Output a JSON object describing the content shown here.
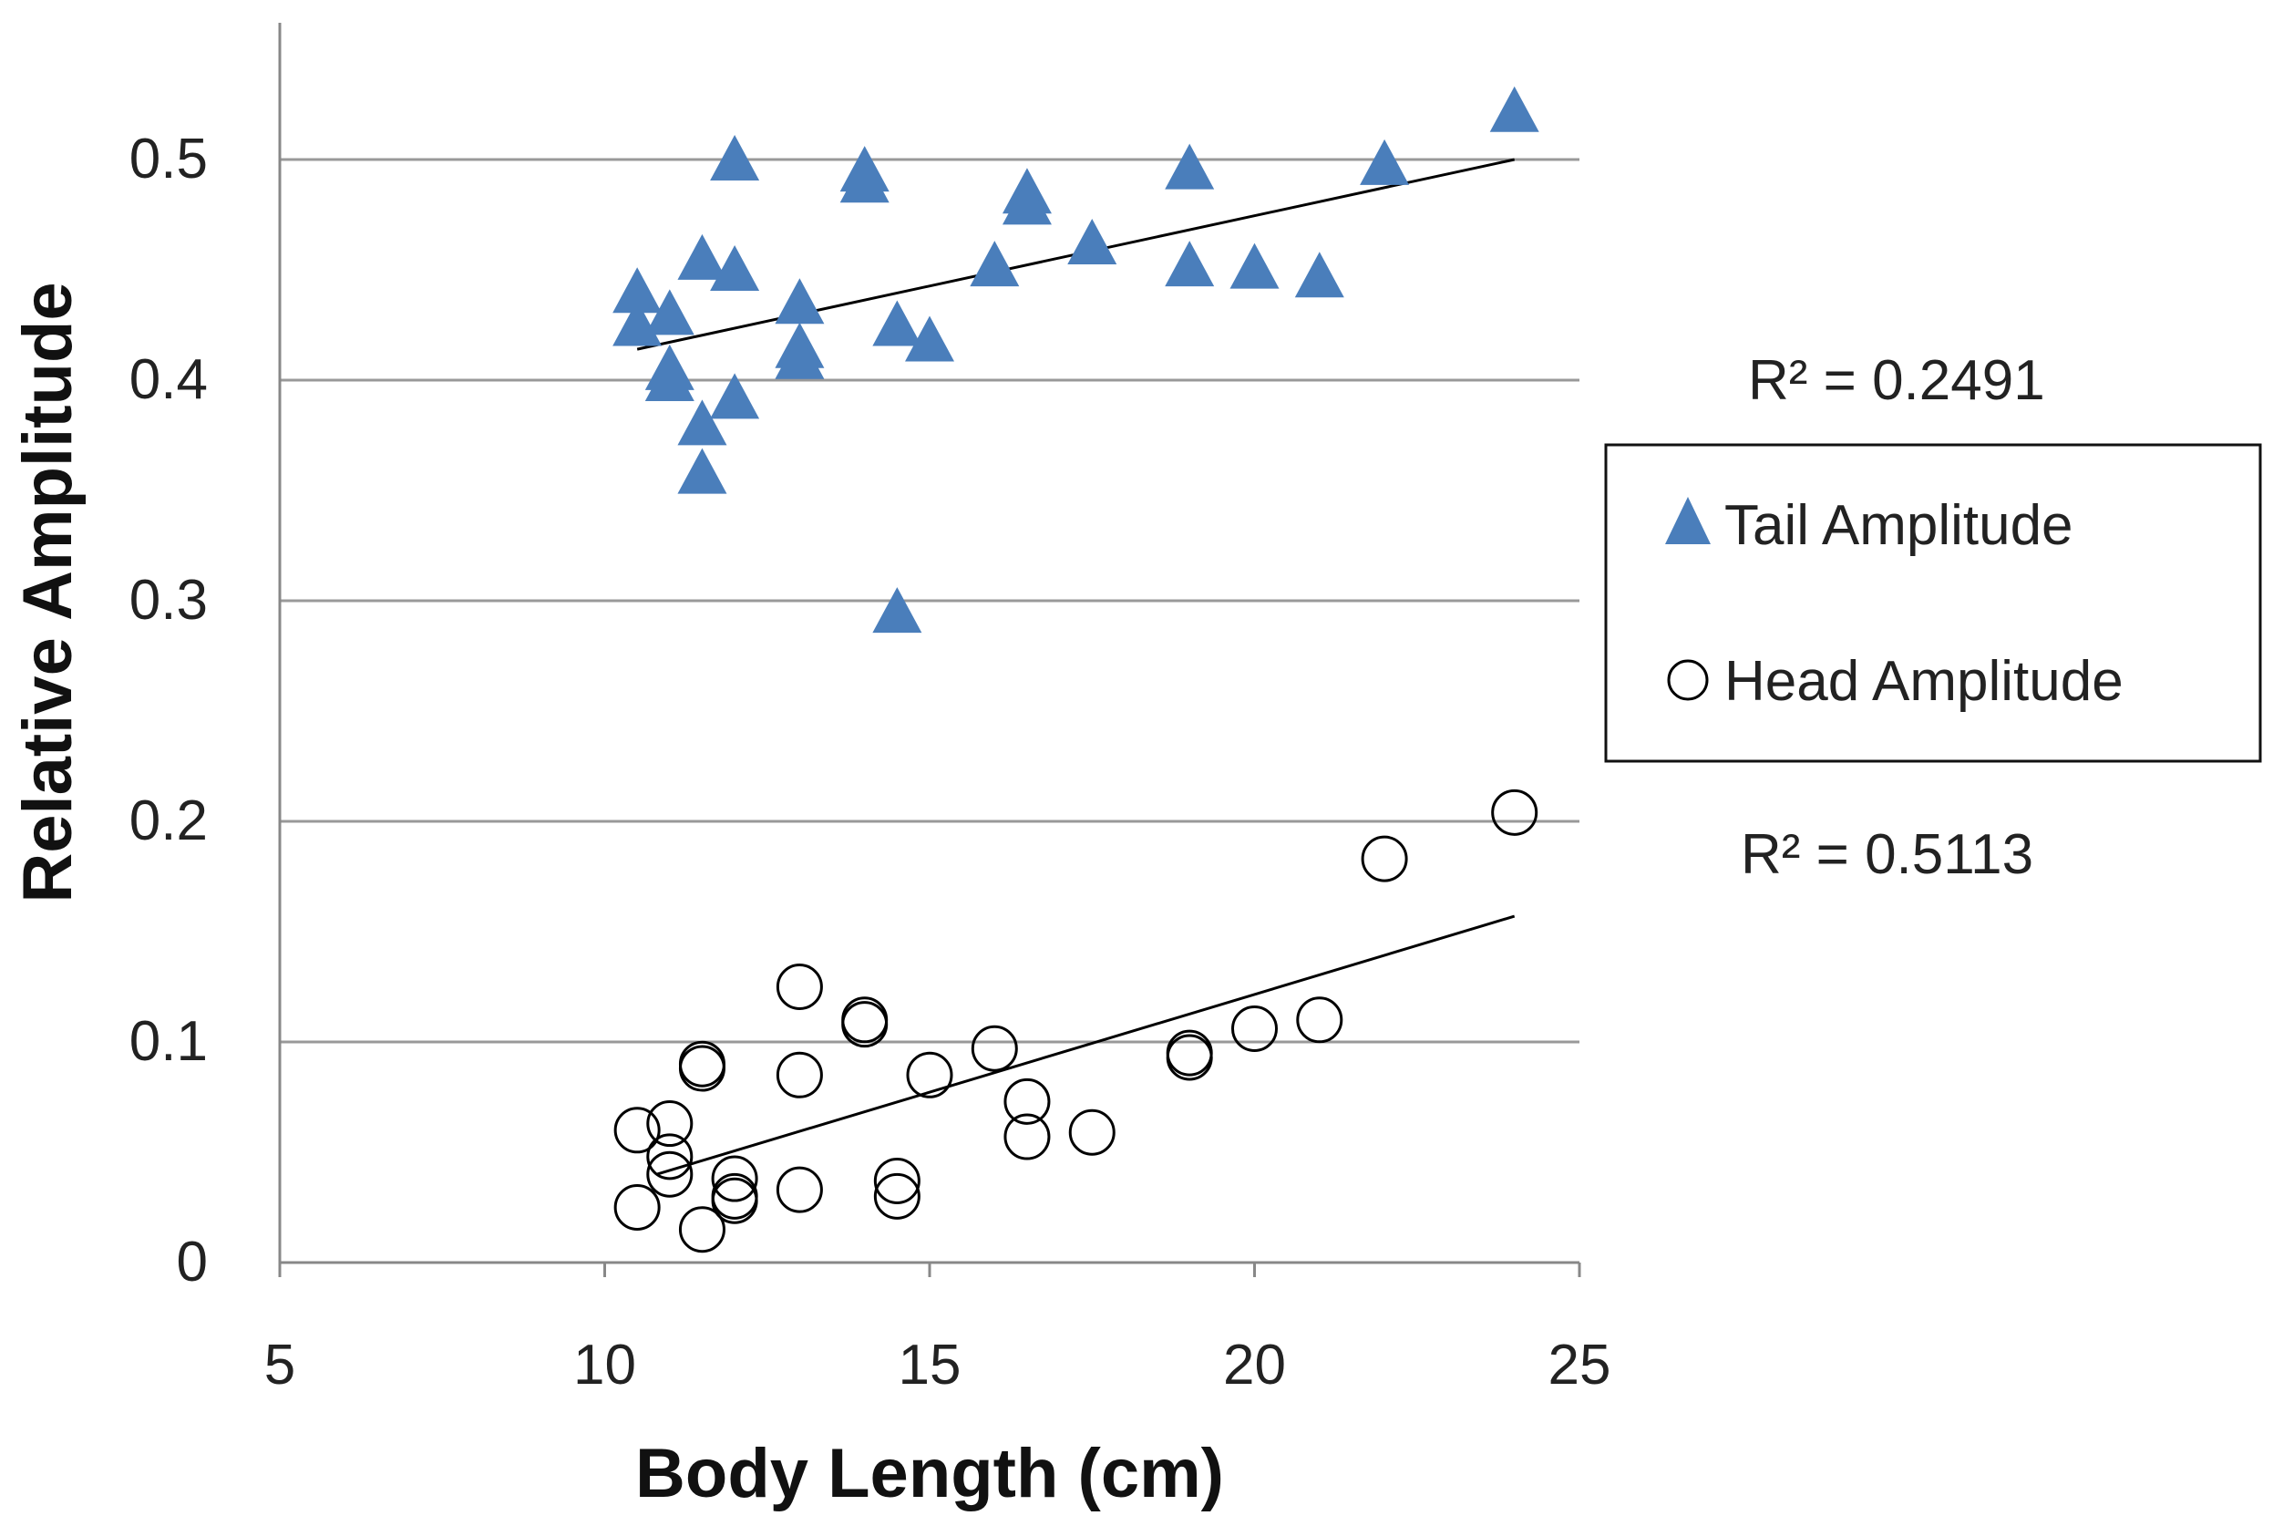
{
  "chart_data": {
    "type": "scatter",
    "title": "",
    "xlabel": "Body Length (cm)",
    "ylabel": "Relative Amplitude",
    "xlim": [
      5,
      25
    ],
    "ylim": [
      0,
      0.55
    ],
    "xticks": [
      5,
      10,
      15,
      20,
      25
    ],
    "yticks": [
      0,
      0.1,
      0.2,
      0.3,
      0.4,
      0.5
    ],
    "ytick_labels": [
      "0",
      "0.1",
      "0.2",
      "0.3",
      "0.4",
      "0.5"
    ],
    "grid": "horizontal",
    "legend_position": "right",
    "series": [
      {
        "name": "Tail Amplitude",
        "marker": "triangle",
        "color": "#4A7EBB",
        "trendline": {
          "x": [
            10.5,
            24
          ],
          "y": [
            0.414,
            0.5
          ]
        },
        "r_squared_label": "R² = 0.2491",
        "points": [
          [
            10.5,
            0.44
          ],
          [
            10.5,
            0.425
          ],
          [
            11,
            0.43
          ],
          [
            11,
            0.405
          ],
          [
            11,
            0.4
          ],
          [
            11.5,
            0.455
          ],
          [
            11.5,
            0.38
          ],
          [
            11.5,
            0.358
          ],
          [
            12,
            0.5
          ],
          [
            12,
            0.45
          ],
          [
            12,
            0.392
          ],
          [
            13,
            0.435
          ],
          [
            13,
            0.415
          ],
          [
            13,
            0.41
          ],
          [
            14,
            0.495
          ],
          [
            14,
            0.49
          ],
          [
            14.5,
            0.425
          ],
          [
            14.5,
            0.295
          ],
          [
            15,
            0.418
          ],
          [
            16,
            0.452
          ],
          [
            16.5,
            0.485
          ],
          [
            16.5,
            0.48
          ],
          [
            17.5,
            0.462
          ],
          [
            19,
            0.496
          ],
          [
            19,
            0.452
          ],
          [
            20,
            0.451
          ],
          [
            21,
            0.447
          ],
          [
            22,
            0.498
          ],
          [
            24,
            0.522
          ]
        ]
      },
      {
        "name": "Head Amplitude",
        "marker": "circle-open",
        "color": "#000000",
        "trendline": {
          "x": [
            10.8,
            24
          ],
          "y": [
            0.04,
            0.157
          ]
        },
        "r_squared_label": "R² = 0.5113",
        "points": [
          [
            10.5,
            0.06
          ],
          [
            10.5,
            0.025
          ],
          [
            11,
            0.063
          ],
          [
            11,
            0.048
          ],
          [
            11,
            0.04
          ],
          [
            11.5,
            0.09
          ],
          [
            11.5,
            0.088
          ],
          [
            11.5,
            0.015
          ],
          [
            12,
            0.038
          ],
          [
            12,
            0.03
          ],
          [
            12,
            0.028
          ],
          [
            13,
            0.125
          ],
          [
            13,
            0.085
          ],
          [
            13,
            0.033
          ],
          [
            14,
            0.11
          ],
          [
            14,
            0.108
          ],
          [
            14.5,
            0.037
          ],
          [
            14.5,
            0.03
          ],
          [
            15,
            0.085
          ],
          [
            16,
            0.097
          ],
          [
            16.5,
            0.073
          ],
          [
            16.5,
            0.057
          ],
          [
            17.5,
            0.059
          ],
          [
            19,
            0.095
          ],
          [
            19,
            0.093
          ],
          [
            20,
            0.106
          ],
          [
            21,
            0.11
          ],
          [
            22,
            0.183
          ],
          [
            24,
            0.204
          ]
        ]
      }
    ]
  }
}
